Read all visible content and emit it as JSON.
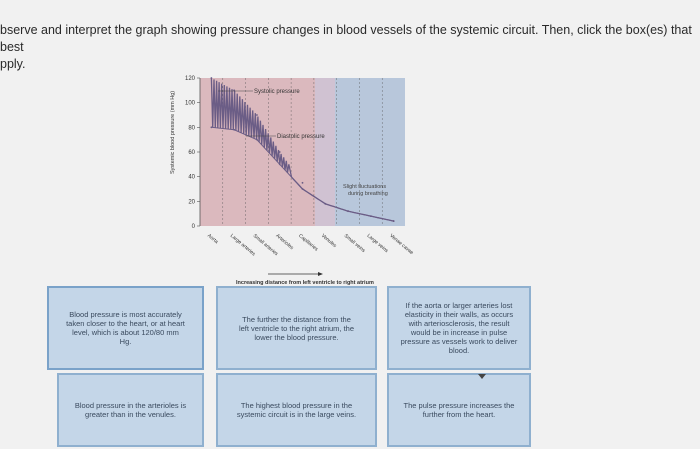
{
  "instructions": "bserve and interpret the graph showing pressure changes in blood vessels of the systemic circuit. Then, click the box(es) that best\npply.",
  "figure": {
    "ylabel": "Systemic blood pressure (mm Hg)",
    "yticks": [
      "120",
      "100",
      "80",
      "60",
      "40",
      "20",
      "0"
    ],
    "systolic_label": "Systolic pressure",
    "diastolic_label": "Diastolic pressure",
    "fluctuation_label_line1": "Slight fluctuations",
    "fluctuation_label_line2": "during breathing",
    "vessels": [
      "Aorta",
      "Large arteries",
      "Small arteries",
      "Arterioles",
      "Capillaries",
      "Venules",
      "Small veins",
      "Large veins",
      "Venae cavae"
    ],
    "xlabel": "Increasing distance from left ventricle to right atrium",
    "colors": {
      "arterial_band": "#c98a94",
      "capillary_band": "#b49ab8",
      "venous_band": "#9ab0cf",
      "curve": "#6b5d86"
    }
  },
  "chart_data": {
    "type": "line",
    "title": "",
    "ylabel": "Systemic blood pressure (mm Hg)",
    "xlabel": "Increasing distance from left ventricle to right atrium",
    "ylim": [
      0,
      120
    ],
    "categories": [
      "Aorta",
      "Large arteries",
      "Small arteries",
      "Arterioles",
      "Capillaries",
      "Venules",
      "Small veins",
      "Large veins",
      "Venae cavae"
    ],
    "series": [
      {
        "name": "Systolic pressure",
        "values": [
          120,
          110,
          90,
          60,
          35,
          18,
          12,
          8,
          4
        ]
      },
      {
        "name": "Diastolic pressure",
        "values": [
          80,
          78,
          70,
          50,
          30,
          18,
          12,
          8,
          4
        ]
      }
    ]
  },
  "answers": [
    {
      "text": "Blood pressure is most accurately taken closer to the heart, or at heart level, which is about 120/80 mm Hg."
    },
    {
      "text": "The further the distance from the left ventricle to the right atrium, the lower the blood pressure."
    },
    {
      "text": "If the aorta or larger arteries lost elasticity in their walls, as occurs with arteriosclerosis, the result would be in increase in pulse pressure as vessels work to deliver blood."
    },
    {
      "text": "Blood pressure in the arterioles is greater than in the venules."
    },
    {
      "text": "The highest blood pressure in the systemic circuit is in the large veins."
    },
    {
      "text": "The pulse pressure increases the further from the heart."
    }
  ]
}
